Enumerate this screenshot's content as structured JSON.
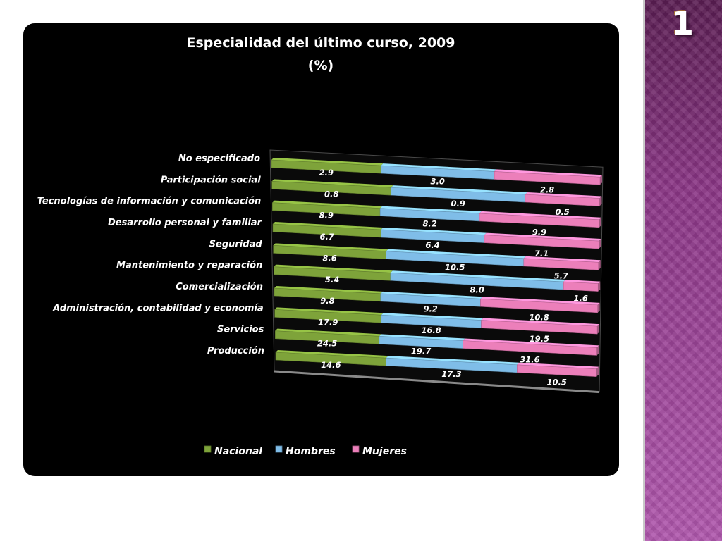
{
  "slide": {
    "number": "1"
  },
  "chart_data": {
    "type": "bar",
    "orientation": "horizontal",
    "stacking": "percent",
    "title": "Especialidad  del último  curso, 2009",
    "subtitle": "(%)",
    "categories": [
      "No especificado",
      "Participación social",
      "Tecnologías de información y comunicación",
      "Desarrollo personal y familiar",
      "Seguridad",
      "Mantenimiento y reparación",
      "Comercialización",
      "Administración, contabilidad y economía",
      "Servicios",
      "Producción"
    ],
    "series": [
      {
        "name": "Nacional",
        "color": "#7ea33a",
        "values": [
          2.9,
          0.8,
          8.9,
          6.7,
          8.6,
          5.4,
          9.8,
          17.9,
          24.5,
          14.6
        ]
      },
      {
        "name": "Hombres",
        "color": "#7fbde8",
        "values": [
          3.0,
          0.9,
          8.2,
          6.4,
          10.5,
          8.0,
          9.2,
          16.8,
          19.7,
          17.3
        ]
      },
      {
        "name": "Mujeres",
        "color": "#ec7fba",
        "values": [
          2.8,
          0.5,
          9.9,
          7.1,
          5.7,
          1.6,
          10.8,
          19.5,
          31.6,
          10.5
        ]
      }
    ],
    "value_labels": [
      [
        "2.9",
        "0.8",
        "8.9",
        "6.7",
        "8.6",
        "5.4",
        "9.8",
        "17.9",
        "24.5",
        "14.6"
      ],
      [
        "3.0",
        "0.9",
        "8.2",
        "6.4",
        "10.5",
        "8.0",
        "9.2",
        "16.8",
        "19.7",
        "17.3"
      ],
      [
        "2.8",
        "0.5",
        "9.9",
        "7.1",
        "5.7",
        "1.6",
        "10.8",
        "19.5",
        "31.6",
        "10.5"
      ]
    ],
    "legend": {
      "position": "bottom",
      "items": [
        "Nacional",
        "Hombres",
        "Mujeres"
      ]
    },
    "grid": false,
    "style": "3d"
  }
}
